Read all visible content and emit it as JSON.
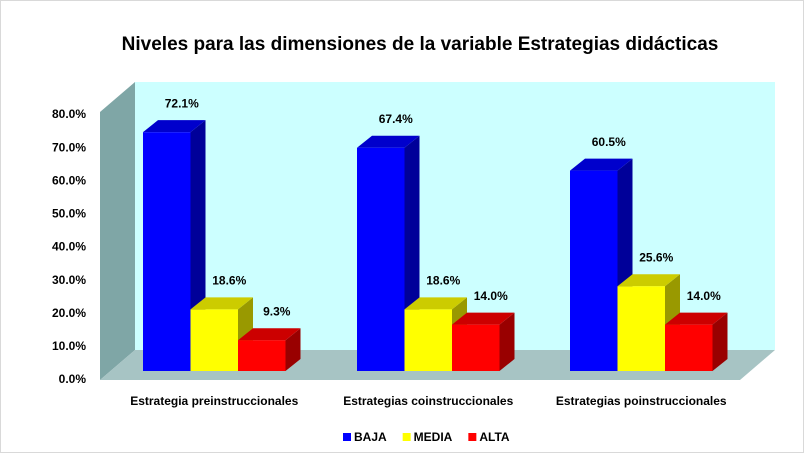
{
  "chart_data": {
    "type": "bar3d",
    "title": "Niveles para las dimensiones de la variable Estrategias didácticas",
    "categories": [
      "Estrategia preinstruccionales",
      "Estrategias coinstruccionales",
      "Estrategias poinstruccionales"
    ],
    "series": [
      {
        "name": "BAJA",
        "color": "#0000ff",
        "values": [
          72.1,
          67.4,
          60.5
        ],
        "value_labels": [
          "72.1%",
          "67.4%",
          "60.5%"
        ]
      },
      {
        "name": "MEDIA",
        "color": "#ffff00",
        "values": [
          18.6,
          18.6,
          25.6
        ],
        "value_labels": [
          "18.6%",
          "18.6%",
          "25.6%"
        ]
      },
      {
        "name": "ALTA",
        "color": "#ff0000",
        "values": [
          9.3,
          14.0,
          14.0
        ],
        "value_labels": [
          "9.3%",
          "14.0%",
          "14.0%"
        ]
      }
    ],
    "ylim": [
      0,
      80
    ],
    "yticks": [
      {
        "value": 0,
        "label": "0.0%"
      },
      {
        "value": 10,
        "label": "10.0%"
      },
      {
        "value": 20,
        "label": "20.0%"
      },
      {
        "value": 30,
        "label": "30.0%"
      },
      {
        "value": 40,
        "label": "40.0%"
      },
      {
        "value": 50,
        "label": "50.0%"
      },
      {
        "value": 60,
        "label": "60.0%"
      },
      {
        "value": 70,
        "label": "70.0%"
      },
      {
        "value": 80,
        "label": "80.0%"
      }
    ],
    "legend": "bottom"
  }
}
